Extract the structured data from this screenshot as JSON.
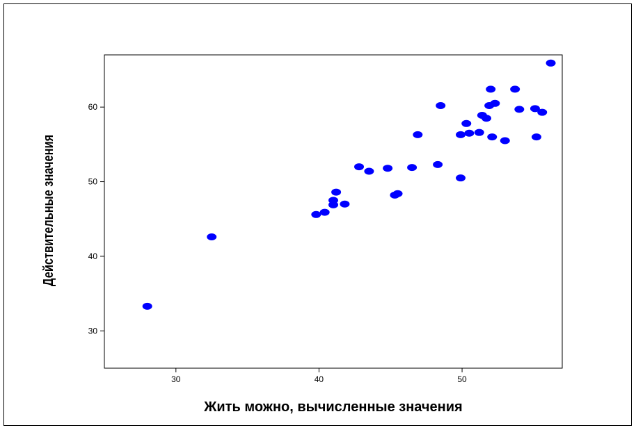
{
  "chart_data": {
    "type": "scatter",
    "title": "",
    "xlabel": "Жить можно, вычисленные значения",
    "ylabel": "Действительные значения",
    "xlim": [
      25,
      57
    ],
    "ylim": [
      25,
      67
    ],
    "xticks": [
      30,
      40,
      50
    ],
    "yticks": [
      30,
      40,
      50,
      60
    ],
    "grid": false,
    "legend": "none",
    "point_color": "#0000FF",
    "series": [
      {
        "points": [
          [
            28.0,
            33.3
          ],
          [
            32.5,
            42.6
          ],
          [
            39.8,
            45.6
          ],
          [
            40.4,
            45.9
          ],
          [
            41.0,
            46.9
          ],
          [
            41.0,
            47.5
          ],
          [
            41.2,
            48.6
          ],
          [
            41.8,
            47.0
          ],
          [
            42.8,
            52.0
          ],
          [
            43.5,
            51.4
          ],
          [
            44.8,
            51.8
          ],
          [
            45.3,
            48.2
          ],
          [
            45.5,
            48.4
          ],
          [
            46.5,
            51.9
          ],
          [
            46.9,
            56.3
          ],
          [
            48.3,
            52.3
          ],
          [
            48.5,
            60.2
          ],
          [
            49.9,
            56.3
          ],
          [
            49.9,
            50.5
          ],
          [
            50.3,
            57.8
          ],
          [
            50.5,
            56.5
          ],
          [
            51.2,
            56.6
          ],
          [
            51.4,
            58.9
          ],
          [
            51.7,
            58.5
          ],
          [
            51.9,
            60.2
          ],
          [
            52.0,
            62.4
          ],
          [
            52.1,
            56.0
          ],
          [
            52.3,
            60.5
          ],
          [
            53.0,
            55.5
          ],
          [
            53.7,
            62.4
          ],
          [
            54.0,
            59.7
          ],
          [
            55.1,
            59.8
          ],
          [
            55.2,
            56.0
          ],
          [
            55.6,
            59.3
          ],
          [
            56.2,
            65.9
          ]
        ]
      }
    ]
  }
}
